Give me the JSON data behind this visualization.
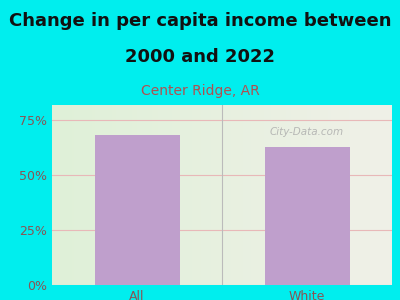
{
  "title_line1": "Change in per capita income between",
  "title_line2": "2000 and 2022",
  "subtitle": "Center Ridge, AR",
  "categories": [
    "All",
    "White"
  ],
  "values": [
    68.5,
    63.0
  ],
  "bar_color": "#bf9fcc",
  "background_color": "#00eeee",
  "plot_bg_left": "#dff0d8",
  "plot_bg_right": "#f0f0e8",
  "title_fontsize": 13,
  "subtitle_fontsize": 10,
  "subtitle_color": "#b05050",
  "tick_label_color": "#885555",
  "title_color": "#111111",
  "ylim": [
    0,
    82
  ],
  "yticks": [
    0,
    25,
    50,
    75
  ],
  "ytick_labels": [
    "0%",
    "25%",
    "50%",
    "75%"
  ],
  "grid_color": "#e8b8b8",
  "watermark": "City-Data.com",
  "bar_width": 0.5
}
